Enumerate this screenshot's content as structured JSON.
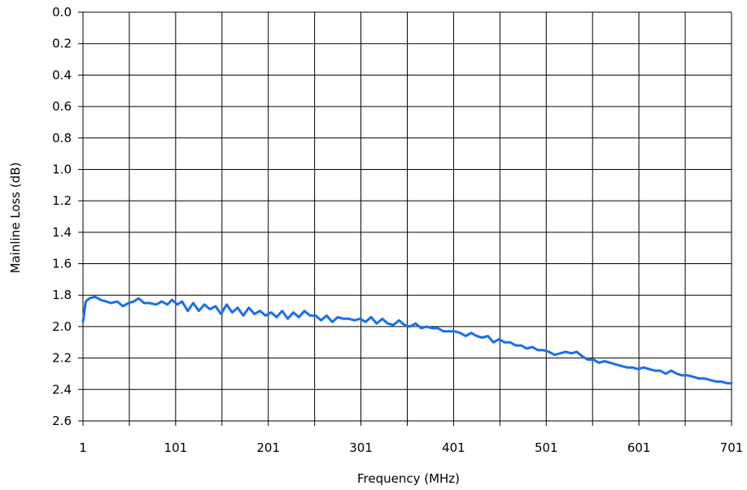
{
  "chart_data": {
    "type": "line",
    "title": "",
    "xlabel": "Frequency (MHz)",
    "ylabel": "Mainline Loss (dB)",
    "xlim": [
      1,
      701
    ],
    "ylim": [
      0.0,
      2.6
    ],
    "y_inverted": true,
    "grid": true,
    "legend": "none",
    "x_ticks": [
      1,
      51,
      101,
      151,
      201,
      251,
      301,
      351,
      401,
      451,
      501,
      551,
      601,
      651,
      701
    ],
    "x_tick_labels": [
      "1",
      "",
      "101",
      "",
      "201",
      "",
      "301",
      "",
      "401",
      "",
      "501",
      "",
      "601",
      "",
      "701"
    ],
    "y_ticks": [
      0.0,
      0.2,
      0.4,
      0.6,
      0.8,
      1.0,
      1.2,
      1.4,
      1.6,
      1.8,
      2.0,
      2.2,
      2.4,
      2.6
    ],
    "y_tick_labels": [
      "0.0",
      "0.2",
      "0.4",
      "0.6",
      "0.8",
      "1.0",
      "1.2",
      "1.4",
      "1.6",
      "1.8",
      "2.0",
      "2.2",
      "2.4",
      "2.6"
    ],
    "series": [
      {
        "color": "#1a6fe8",
        "x": [
          1,
          4,
          8,
          14,
          20,
          26,
          31,
          38,
          44,
          50,
          56,
          61,
          67,
          73,
          80,
          86,
          92,
          97,
          103,
          108,
          114,
          120,
          126,
          132,
          138,
          144,
          150,
          156,
          162,
          168,
          174,
          180,
          186,
          192,
          198,
          204,
          210,
          216,
          222,
          228,
          234,
          240,
          246,
          252,
          258,
          264,
          270,
          276,
          282,
          288,
          294,
          300,
          306,
          312,
          318,
          324,
          330,
          336,
          342,
          348,
          354,
          360,
          366,
          372,
          378,
          384,
          390,
          396,
          402,
          408,
          414,
          420,
          426,
          432,
          438,
          444,
          450,
          456,
          462,
          468,
          474,
          480,
          486,
          492,
          498,
          504,
          510,
          516,
          522,
          528,
          534,
          540,
          546,
          552,
          558,
          564,
          570,
          576,
          582,
          588,
          594,
          600,
          606,
          612,
          618,
          624,
          630,
          636,
          642,
          648,
          654,
          660,
          666,
          672,
          678,
          684,
          690,
          696,
          701
        ],
        "y": [
          1.97,
          1.84,
          1.82,
          1.81,
          1.83,
          1.84,
          1.85,
          1.84,
          1.87,
          1.85,
          1.84,
          1.82,
          1.85,
          1.85,
          1.86,
          1.84,
          1.86,
          1.83,
          1.86,
          1.84,
          1.9,
          1.85,
          1.9,
          1.86,
          1.89,
          1.87,
          1.92,
          1.86,
          1.91,
          1.88,
          1.93,
          1.88,
          1.92,
          1.9,
          1.93,
          1.91,
          1.94,
          1.9,
          1.95,
          1.91,
          1.94,
          1.9,
          1.93,
          1.93,
          1.96,
          1.93,
          1.97,
          1.94,
          1.95,
          1.95,
          1.96,
          1.95,
          1.97,
          1.94,
          1.98,
          1.95,
          1.98,
          1.99,
          1.96,
          1.99,
          2.0,
          1.98,
          2.01,
          2.0,
          2.01,
          2.01,
          2.03,
          2.03,
          2.03,
          2.04,
          2.06,
          2.04,
          2.06,
          2.07,
          2.06,
          2.1,
          2.08,
          2.1,
          2.1,
          2.12,
          2.12,
          2.14,
          2.13,
          2.15,
          2.15,
          2.16,
          2.18,
          2.17,
          2.16,
          2.17,
          2.16,
          2.19,
          2.21,
          2.21,
          2.23,
          2.22,
          2.23,
          2.24,
          2.25,
          2.26,
          2.26,
          2.27,
          2.26,
          2.27,
          2.28,
          2.28,
          2.3,
          2.28,
          2.3,
          2.31,
          2.31,
          2.32,
          2.33,
          2.33,
          2.34,
          2.35,
          2.35,
          2.36,
          2.36
        ]
      }
    ]
  }
}
